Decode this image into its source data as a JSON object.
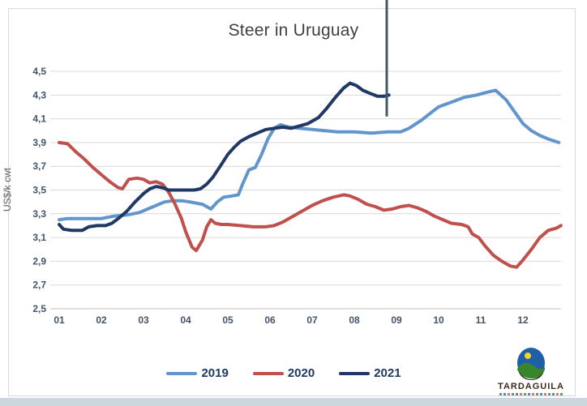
{
  "title": "Steer in Uruguay",
  "y_axis_title": "US$/k cwt",
  "logo": {
    "text": "TARDAGUILA"
  },
  "chart_data": {
    "type": "line",
    "title": "Steer in Uruguay",
    "xlabel": "",
    "ylabel": "US$/k cwt",
    "ylim": [
      2.5,
      4.5
    ],
    "ytick_step": 0.2,
    "grid": true,
    "legend_position": "bottom",
    "decimal_separator": ",",
    "categories": [
      "01",
      "02",
      "03",
      "04",
      "05",
      "06",
      "07",
      "08",
      "09",
      "10",
      "11",
      "12"
    ],
    "yticks": [
      {
        "v": 4.5,
        "label": "4,5"
      },
      {
        "v": 4.3,
        "label": "4,3"
      },
      {
        "v": 4.1,
        "label": "4,1"
      },
      {
        "v": 3.9,
        "label": "3,9"
      },
      {
        "v": 3.7,
        "label": "3,7"
      },
      {
        "v": 3.5,
        "label": "3,5"
      },
      {
        "v": 3.3,
        "label": "3,3"
      },
      {
        "v": 3.1,
        "label": "3,1"
      },
      {
        "v": 2.9,
        "label": "2,9"
      },
      {
        "v": 2.7,
        "label": "2,7"
      },
      {
        "v": 2.5,
        "label": "2,5"
      }
    ],
    "series": [
      {
        "name": "2019",
        "color": "#6395cd",
        "points": [
          [
            1.0,
            3.25
          ],
          [
            1.2,
            3.26
          ],
          [
            1.6,
            3.26
          ],
          [
            2.0,
            3.26
          ],
          [
            2.3,
            3.28
          ],
          [
            2.6,
            3.29
          ],
          [
            2.9,
            3.31
          ],
          [
            3.1,
            3.34
          ],
          [
            3.3,
            3.37
          ],
          [
            3.5,
            3.4
          ],
          [
            3.7,
            3.41
          ],
          [
            3.9,
            3.41
          ],
          [
            4.1,
            3.4
          ],
          [
            4.4,
            3.38
          ],
          [
            4.6,
            3.34
          ],
          [
            4.75,
            3.4
          ],
          [
            4.9,
            3.44
          ],
          [
            5.1,
            3.45
          ],
          [
            5.25,
            3.46
          ],
          [
            5.35,
            3.55
          ],
          [
            5.5,
            3.67
          ],
          [
            5.65,
            3.69
          ],
          [
            5.8,
            3.8
          ],
          [
            5.95,
            3.93
          ],
          [
            6.1,
            4.02
          ],
          [
            6.25,
            4.05
          ],
          [
            6.45,
            4.03
          ],
          [
            6.7,
            4.02
          ],
          [
            7.0,
            4.01
          ],
          [
            7.3,
            4.0
          ],
          [
            7.6,
            3.99
          ],
          [
            8.0,
            3.99
          ],
          [
            8.4,
            3.98
          ],
          [
            8.8,
            3.99
          ],
          [
            9.1,
            3.99
          ],
          [
            9.3,
            4.02
          ],
          [
            9.6,
            4.09
          ],
          [
            9.85,
            4.16
          ],
          [
            10.0,
            4.2
          ],
          [
            10.3,
            4.24
          ],
          [
            10.6,
            4.28
          ],
          [
            10.9,
            4.3
          ],
          [
            11.1,
            4.32
          ],
          [
            11.35,
            4.34
          ],
          [
            11.6,
            4.26
          ],
          [
            11.8,
            4.16
          ],
          [
            12.0,
            4.06
          ],
          [
            12.2,
            4.0
          ],
          [
            12.4,
            3.96
          ],
          [
            12.6,
            3.93
          ],
          [
            12.85,
            3.9
          ]
        ]
      },
      {
        "name": "2020",
        "color": "#c0504d",
        "points": [
          [
            1.0,
            3.9
          ],
          [
            1.2,
            3.89
          ],
          [
            1.4,
            3.82
          ],
          [
            1.6,
            3.76
          ],
          [
            1.8,
            3.69
          ],
          [
            2.0,
            3.63
          ],
          [
            2.2,
            3.57
          ],
          [
            2.4,
            3.52
          ],
          [
            2.5,
            3.51
          ],
          [
            2.65,
            3.59
          ],
          [
            2.85,
            3.6
          ],
          [
            3.0,
            3.59
          ],
          [
            3.15,
            3.56
          ],
          [
            3.3,
            3.57
          ],
          [
            3.45,
            3.55
          ],
          [
            3.6,
            3.48
          ],
          [
            3.75,
            3.38
          ],
          [
            3.9,
            3.26
          ],
          [
            4.0,
            3.15
          ],
          [
            4.15,
            3.02
          ],
          [
            4.25,
            2.99
          ],
          [
            4.4,
            3.08
          ],
          [
            4.5,
            3.19
          ],
          [
            4.6,
            3.25
          ],
          [
            4.7,
            3.22
          ],
          [
            4.85,
            3.21
          ],
          [
            5.0,
            3.21
          ],
          [
            5.3,
            3.2
          ],
          [
            5.6,
            3.19
          ],
          [
            5.9,
            3.19
          ],
          [
            6.1,
            3.2
          ],
          [
            6.3,
            3.23
          ],
          [
            6.5,
            3.27
          ],
          [
            6.75,
            3.32
          ],
          [
            7.0,
            3.37
          ],
          [
            7.25,
            3.41
          ],
          [
            7.5,
            3.44
          ],
          [
            7.75,
            3.46
          ],
          [
            7.9,
            3.45
          ],
          [
            8.1,
            3.42
          ],
          [
            8.3,
            3.38
          ],
          [
            8.5,
            3.36
          ],
          [
            8.7,
            3.33
          ],
          [
            8.9,
            3.34
          ],
          [
            9.1,
            3.36
          ],
          [
            9.3,
            3.37
          ],
          [
            9.5,
            3.35
          ],
          [
            9.7,
            3.32
          ],
          [
            9.9,
            3.28
          ],
          [
            10.1,
            3.25
          ],
          [
            10.3,
            3.22
          ],
          [
            10.55,
            3.21
          ],
          [
            10.7,
            3.19
          ],
          [
            10.8,
            3.13
          ],
          [
            10.95,
            3.1
          ],
          [
            11.1,
            3.03
          ],
          [
            11.3,
            2.95
          ],
          [
            11.5,
            2.9
          ],
          [
            11.7,
            2.86
          ],
          [
            11.85,
            2.85
          ],
          [
            12.0,
            2.91
          ],
          [
            12.2,
            3.0
          ],
          [
            12.4,
            3.1
          ],
          [
            12.6,
            3.16
          ],
          [
            12.8,
            3.18
          ],
          [
            12.9,
            3.2
          ]
        ]
      },
      {
        "name": "2021",
        "color": "#1f3864",
        "points": [
          [
            1.0,
            3.21
          ],
          [
            1.1,
            3.17
          ],
          [
            1.3,
            3.16
          ],
          [
            1.55,
            3.16
          ],
          [
            1.7,
            3.19
          ],
          [
            1.9,
            3.2
          ],
          [
            2.1,
            3.2
          ],
          [
            2.25,
            3.22
          ],
          [
            2.4,
            3.26
          ],
          [
            2.6,
            3.32
          ],
          [
            2.8,
            3.4
          ],
          [
            3.0,
            3.47
          ],
          [
            3.15,
            3.51
          ],
          [
            3.3,
            3.53
          ],
          [
            3.45,
            3.52
          ],
          [
            3.6,
            3.5
          ],
          [
            3.8,
            3.5
          ],
          [
            4.0,
            3.5
          ],
          [
            4.2,
            3.5
          ],
          [
            4.35,
            3.51
          ],
          [
            4.5,
            3.55
          ],
          [
            4.65,
            3.61
          ],
          [
            4.8,
            3.69
          ],
          [
            5.0,
            3.8
          ],
          [
            5.15,
            3.86
          ],
          [
            5.3,
            3.91
          ],
          [
            5.5,
            3.95
          ],
          [
            5.7,
            3.98
          ],
          [
            5.9,
            4.01
          ],
          [
            6.1,
            4.02
          ],
          [
            6.3,
            4.03
          ],
          [
            6.5,
            4.02
          ],
          [
            6.7,
            4.04
          ],
          [
            6.9,
            4.06
          ],
          [
            7.0,
            4.08
          ],
          [
            7.15,
            4.11
          ],
          [
            7.35,
            4.19
          ],
          [
            7.55,
            4.28
          ],
          [
            7.75,
            4.36
          ],
          [
            7.9,
            4.4
          ],
          [
            8.05,
            4.38
          ],
          [
            8.2,
            4.34
          ],
          [
            8.4,
            4.31
          ],
          [
            8.55,
            4.29
          ],
          [
            8.7,
            4.29
          ],
          [
            8.82,
            4.3
          ]
        ]
      }
    ],
    "annotation": {
      "type": "vertical-line",
      "x_month": 8.77,
      "y_end_value": 4.12,
      "color": "#3f5a68"
    }
  }
}
